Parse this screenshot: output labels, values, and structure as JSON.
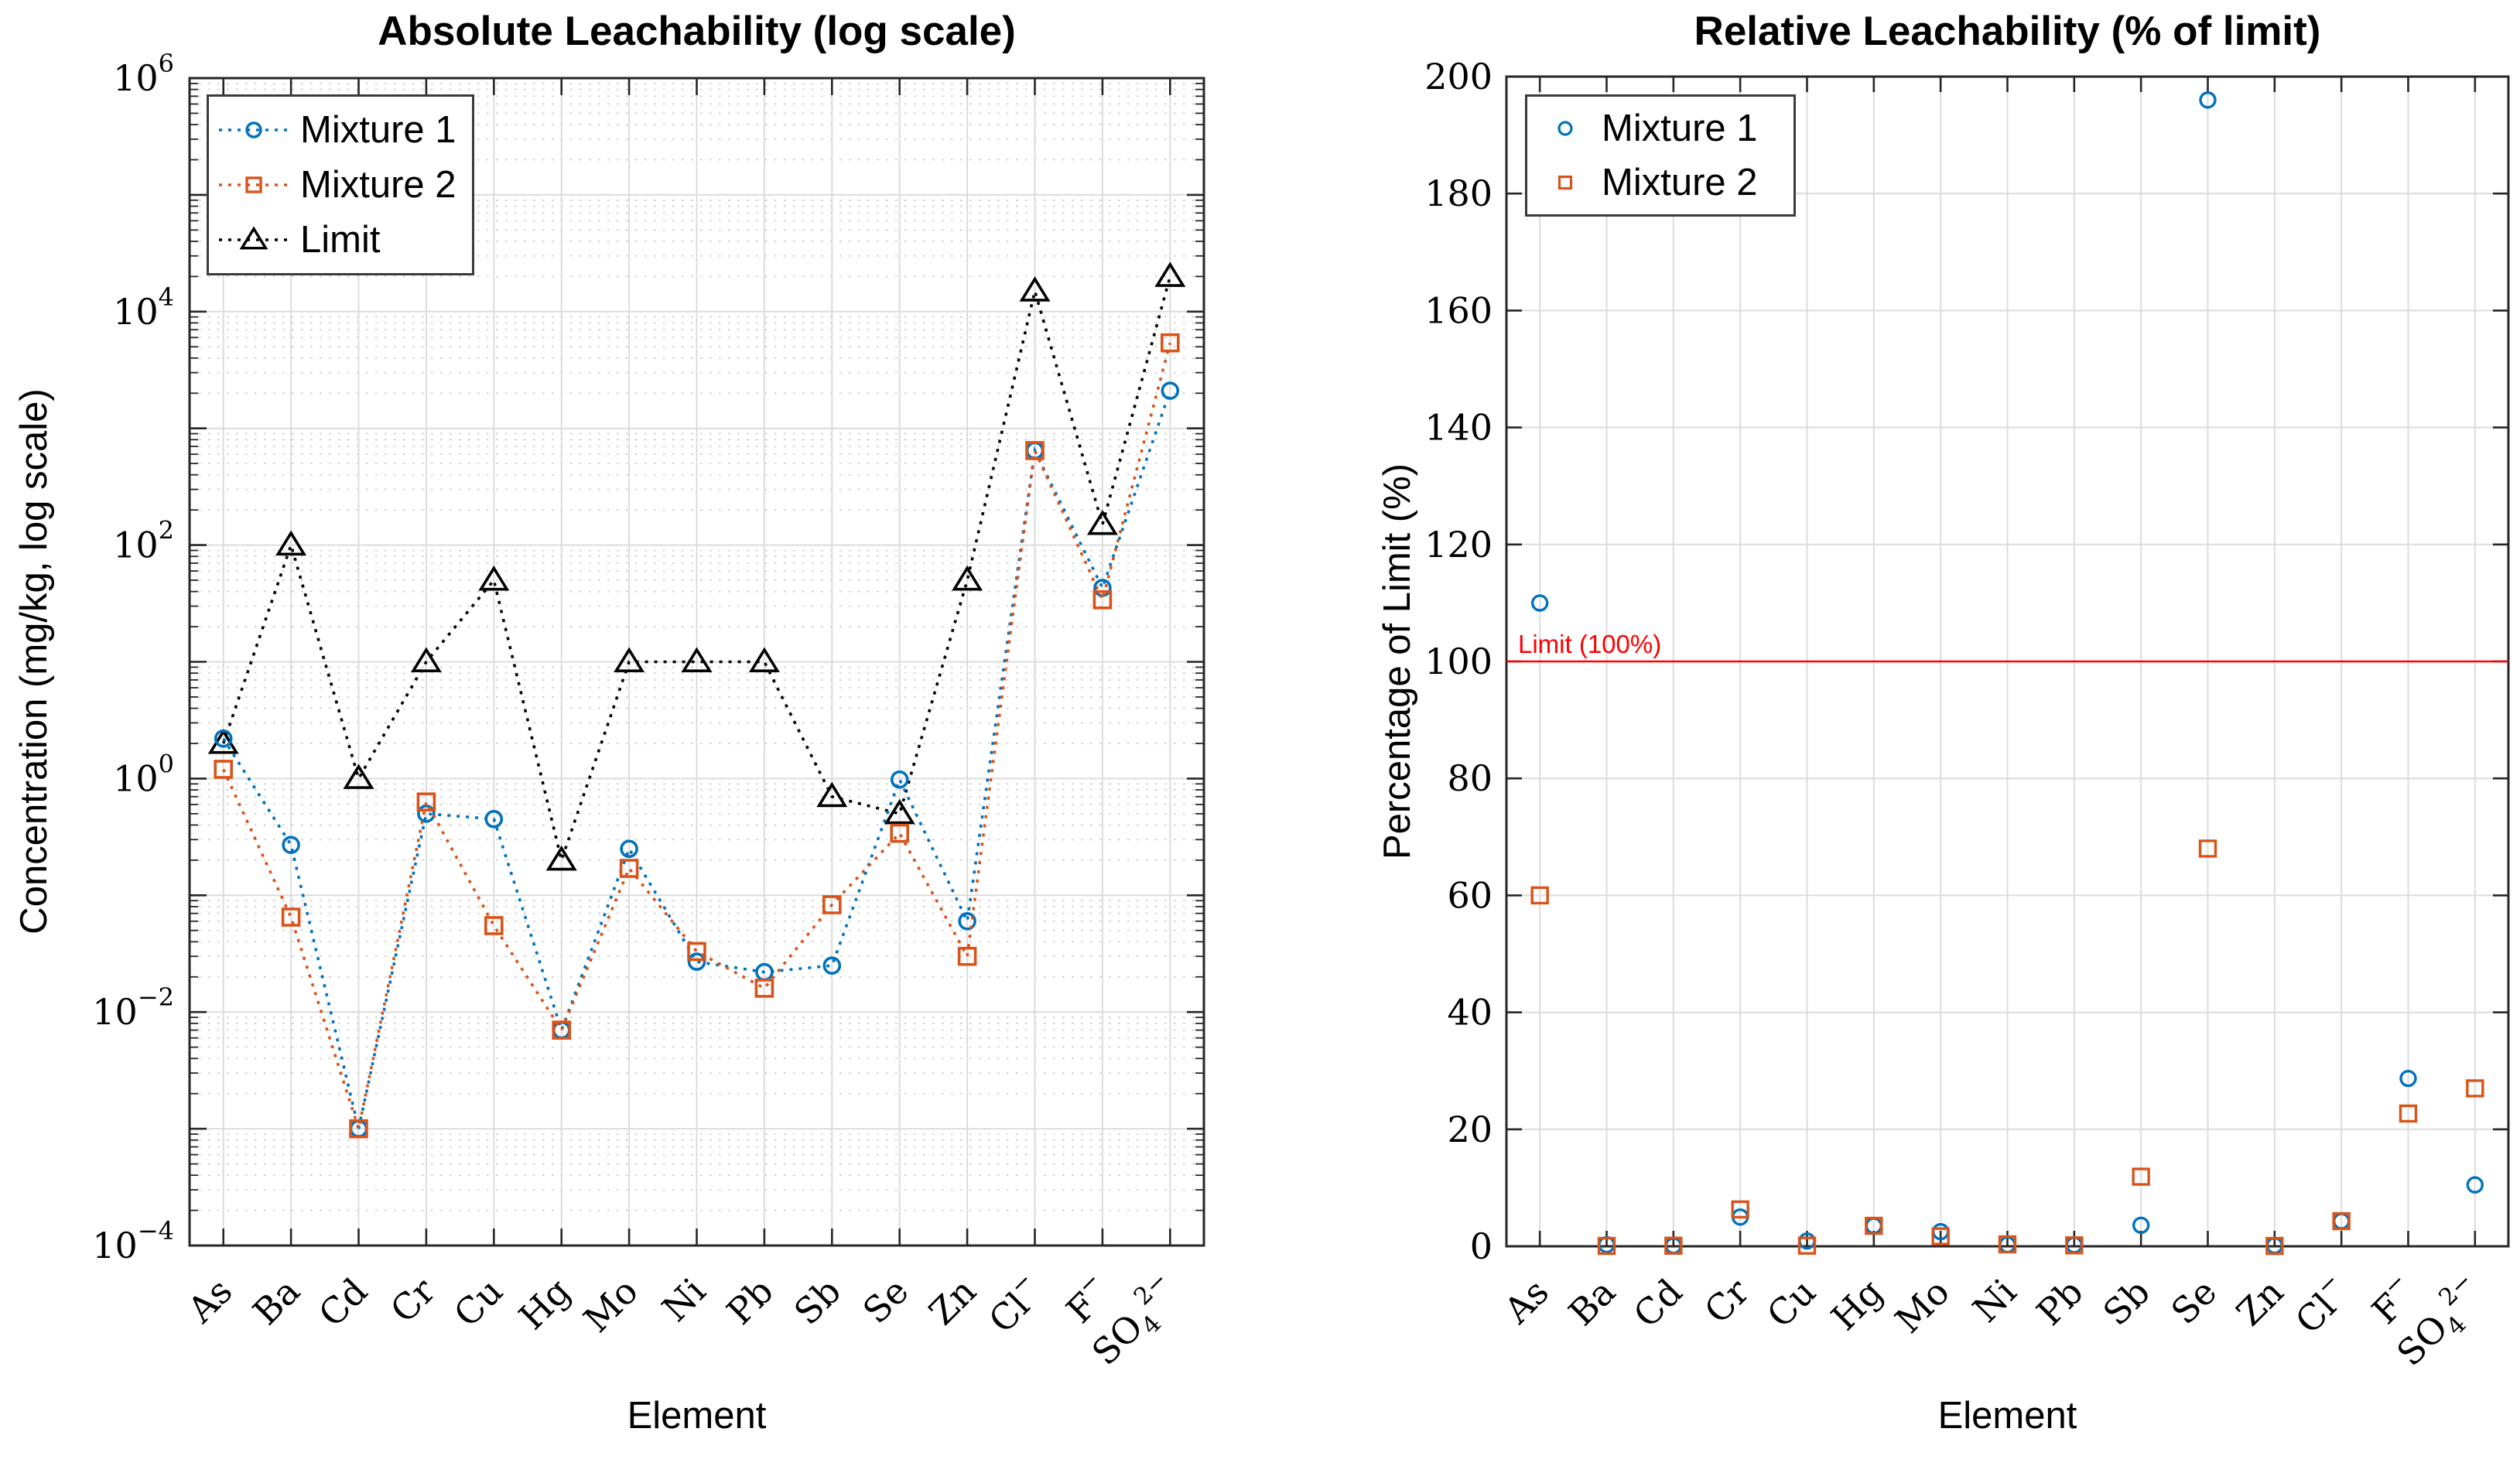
{
  "figure": {
    "background": "#ffffff",
    "colors": {
      "mixture1": "#0072BD",
      "mixture2": "#D95319",
      "limit_series": "#000000",
      "limit_line": "#FF0000",
      "grid_major": "#DCDCDC",
      "grid_minor": "#C8C8C8",
      "axis_frame": "#262626",
      "text": "#000000"
    }
  },
  "chart_data": [
    {
      "type": "line",
      "title": "Absolute Leachability (log scale)",
      "xlabel": "Element",
      "ylabel": "Concentration (mg/kg, log scale)",
      "x_categories": [
        "As",
        "Ba",
        "Cd",
        "Cr",
        "Cu",
        "Hg",
        "Mo",
        "Ni",
        "Pb",
        "Sb",
        "Se",
        "Zn",
        "Cl⁻",
        "F⁻",
        "SO₄²⁻"
      ],
      "yscale": "log",
      "ylim": [
        0.0001,
        1000000
      ],
      "ytick_exponents": [
        6,
        4,
        2,
        0,
        -2,
        -4
      ],
      "grid": "major+log-minor-dotted",
      "legend_position": "top-left",
      "line_style": "dotted",
      "series": [
        {
          "name": "Mixture 1",
          "marker": "circle",
          "color": "#0072BD",
          "values": [
            2.2,
            0.27,
            0.001,
            0.5,
            0.45,
            0.007,
            0.25,
            0.027,
            0.022,
            0.025,
            0.98,
            0.06,
            645,
            43,
            2100
          ]
        },
        {
          "name": "Mixture 2",
          "marker": "square",
          "color": "#D95319",
          "values": [
            1.2,
            0.065,
            0.001,
            0.63,
            0.055,
            0.007,
            0.17,
            0.033,
            0.016,
            0.083,
            0.34,
            0.03,
            645,
            34,
            5400
          ]
        },
        {
          "name": "Limit",
          "marker": "triangle",
          "color": "#000000",
          "values": [
            2,
            100,
            1,
            10,
            50,
            0.2,
            10,
            10,
            10,
            0.7,
            0.5,
            50,
            15000,
            150,
            20000
          ]
        }
      ]
    },
    {
      "type": "scatter",
      "title": "Relative Leachability (% of limit)",
      "xlabel": "Element",
      "ylabel": "Percentage of Limit (%)",
      "x_categories": [
        "As",
        "Ba",
        "Cd",
        "Cr",
        "Cu",
        "Hg",
        "Mo",
        "Ni",
        "Pb",
        "Sb",
        "Se",
        "Zn",
        "Cl⁻",
        "F⁻",
        "SO₄²⁻"
      ],
      "yscale": "linear",
      "ylim": [
        0,
        200
      ],
      "ytick_step": 20,
      "grid": "major",
      "legend_position": "top-left",
      "limit_line": {
        "value": 100,
        "label": "Limit (100%)",
        "color": "#FF0000"
      },
      "series": [
        {
          "name": "Mixture 1",
          "marker": "circle",
          "color": "#0072BD",
          "values": [
            110,
            0.27,
            0.1,
            5.0,
            0.9,
            3.5,
            2.5,
            0.27,
            0.22,
            3.6,
            196,
            0.12,
            4.3,
            28.7,
            10.5
          ]
        },
        {
          "name": "Mixture 2",
          "marker": "square",
          "color": "#D95319",
          "values": [
            60,
            0.065,
            0.1,
            6.3,
            0.11,
            3.5,
            1.7,
            0.33,
            0.16,
            11.9,
            68,
            0.06,
            4.3,
            22.7,
            27
          ]
        }
      ]
    }
  ]
}
